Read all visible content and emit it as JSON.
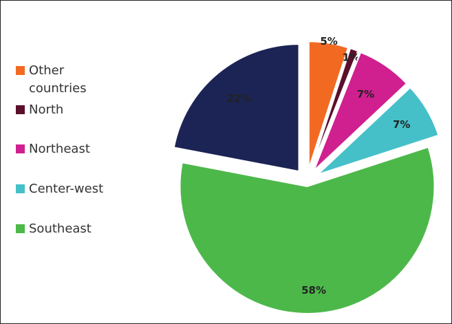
{
  "chart_data": {
    "type": "pie",
    "title": "",
    "legend_position": "left",
    "slices": [
      {
        "label": "Other countries",
        "value": 5,
        "value_label": "5%",
        "color": "#F26A22"
      },
      {
        "label": "North",
        "value": 1,
        "value_label": "1%",
        "color": "#5C0F2B"
      },
      {
        "label": "Northeast",
        "value": 7,
        "value_label": "7%",
        "color": "#D0208F"
      },
      {
        "label": "Center-west",
        "value": 7,
        "value_label": "7%",
        "color": "#45C0C8"
      },
      {
        "label": "Southeast",
        "value": 58,
        "value_label": "58%",
        "color": "#4DB84A"
      },
      {
        "label": "",
        "value": 22,
        "value_label": "22%",
        "color": "#1C2455"
      }
    ]
  },
  "legend": {
    "items": [
      {
        "label_line1": "Other",
        "label_line2": "countries",
        "color": "#F26A22"
      },
      {
        "label_line1": "North",
        "label_line2": "",
        "color": "#5C0F2B"
      },
      {
        "label_line1": "Northeast",
        "label_line2": "",
        "color": "#D0208F"
      },
      {
        "label_line1": "Center-west",
        "label_line2": "",
        "color": "#45C0C8"
      },
      {
        "label_line1": "Southeast",
        "label_line2": "",
        "color": "#4DB84A"
      }
    ]
  }
}
